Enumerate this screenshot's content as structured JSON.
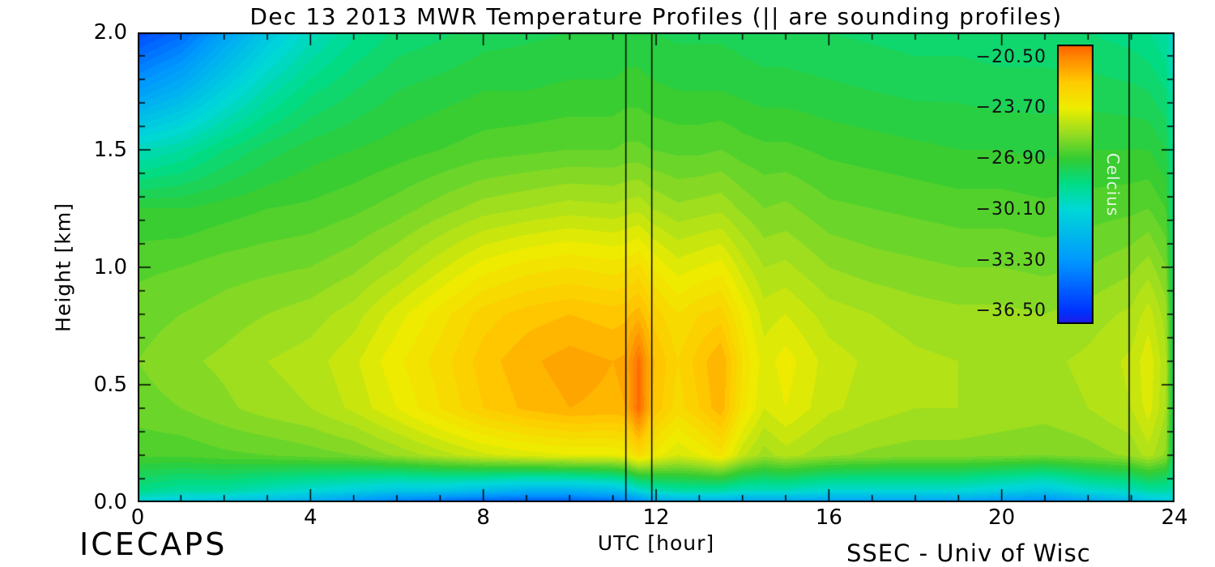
{
  "footer": {
    "left": "ICECAPS",
    "right": "SSEC - Univ of Wisc"
  },
  "chart_data": {
    "type": "heatmap",
    "title": "Dec 13 2013 MWR Temperature Profiles (|| are sounding profiles)",
    "xlabel": "UTC [hour]",
    "ylabel": "Height [km]",
    "xlim": [
      0,
      24
    ],
    "ylim": [
      0,
      2
    ],
    "xticks_major": [
      0,
      4,
      8,
      12,
      16,
      20,
      24
    ],
    "xticks_minor_step": 1,
    "yticks_major": [
      0.0,
      0.5,
      1.0,
      1.5,
      2.0
    ],
    "ytick_labels": [
      "0.0",
      "0.5",
      "1.0",
      "1.5",
      "2.0"
    ],
    "yticks_minor_step": 0.1,
    "sounding_lines_x": [
      11.3,
      11.9,
      22.95
    ],
    "values_units": "C",
    "contour_step": 0.4,
    "colorbar": {
      "label": "Celcius",
      "domain": [
        -37.3,
        -19.7
      ],
      "ticks": [
        -20.5,
        -23.7,
        -26.9,
        -30.1,
        -33.3,
        -36.5
      ],
      "tick_labels": [
        "−20.50",
        "−23.70",
        "−26.90",
        "−30.10",
        "−33.30",
        "−36.50"
      ]
    },
    "color_stops": [
      [
        -38.1,
        "#4400cc"
      ],
      [
        -36.5,
        "#0033ff"
      ],
      [
        -33.3,
        "#0099ff"
      ],
      [
        -30.1,
        "#00d8d8"
      ],
      [
        -28.5,
        "#00dd88"
      ],
      [
        -26.9,
        "#33cc33"
      ],
      [
        -25.3,
        "#99dd22"
      ],
      [
        -23.7,
        "#eeee00"
      ],
      [
        -22.1,
        "#ffcc00"
      ],
      [
        -20.5,
        "#ff8800"
      ],
      [
        -18.9,
        "#ff3300"
      ]
    ],
    "x": [
      0,
      1,
      2,
      3,
      4,
      5,
      6,
      7,
      8,
      9,
      10,
      11,
      11.3,
      11.6,
      11.9,
      12.5,
      13,
      13.5,
      14,
      14.5,
      15,
      16,
      17,
      18,
      19,
      20,
      21,
      22,
      23,
      23.4,
      23.8,
      24
    ],
    "y": [
      0,
      0.05,
      0.2,
      0.4,
      0.6,
      0.8,
      1.0,
      1.25,
      1.5,
      1.75,
      2.0
    ],
    "grid": [
      [
        -30.5,
        -28.5,
        -26.5,
        -26.0,
        -25.8,
        -26.0,
        -26.3,
        -27.0,
        -29.5,
        -33.0,
        -35.8
      ],
      [
        -31.0,
        -29.0,
        -26.5,
        -25.8,
        -25.5,
        -25.8,
        -26.2,
        -27.0,
        -29.0,
        -32.0,
        -34.8
      ],
      [
        -31.5,
        -29.0,
        -26.3,
        -25.5,
        -25.3,
        -25.6,
        -26.0,
        -26.8,
        -28.2,
        -30.5,
        -32.8
      ],
      [
        -32.0,
        -29.5,
        -26.2,
        -25.2,
        -25.0,
        -25.4,
        -25.9,
        -26.6,
        -27.6,
        -29.2,
        -31.0
      ],
      [
        -32.5,
        -30.0,
        -26.0,
        -25.0,
        -24.8,
        -25.2,
        -25.8,
        -26.5,
        -27.2,
        -28.3,
        -29.6
      ],
      [
        -33.5,
        -30.5,
        -25.8,
        -24.5,
        -24.3,
        -24.8,
        -25.5,
        -26.3,
        -27.0,
        -27.8,
        -28.7
      ],
      [
        -34.5,
        -31.0,
        -25.3,
        -23.8,
        -23.5,
        -24.0,
        -25.0,
        -26.0,
        -26.8,
        -27.4,
        -28.1
      ],
      [
        -35.0,
        -31.0,
        -24.8,
        -23.0,
        -22.8,
        -23.2,
        -24.3,
        -25.6,
        -26.6,
        -27.2,
        -27.9
      ],
      [
        -35.5,
        -31.5,
        -24.3,
        -22.2,
        -22.0,
        -22.4,
        -23.6,
        -25.2,
        -26.4,
        -27.0,
        -27.6
      ],
      [
        -35.5,
        -32.0,
        -24.0,
        -21.7,
        -21.5,
        -22.0,
        -23.2,
        -25.0,
        -26.3,
        -27.0,
        -27.5
      ],
      [
        -35.5,
        -32.0,
        -23.8,
        -21.4,
        -21.2,
        -21.8,
        -23.0,
        -24.8,
        -26.2,
        -26.9,
        -27.4
      ],
      [
        -35.0,
        -31.5,
        -23.8,
        -21.5,
        -21.4,
        -22.0,
        -23.2,
        -24.9,
        -26.2,
        -26.9,
        -27.4
      ],
      [
        -34.5,
        -31.0,
        -23.6,
        -21.4,
        -21.3,
        -21.9,
        -23.1,
        -24.8,
        -26.1,
        -26.8,
        -27.3
      ],
      [
        -34.0,
        -30.0,
        -22.8,
        -19.9,
        -20.0,
        -21.6,
        -22.9,
        -24.7,
        -26.1,
        -26.8,
        -27.3
      ],
      [
        -33.0,
        -29.5,
        -23.5,
        -21.8,
        -21.7,
        -22.3,
        -23.4,
        -25.0,
        -26.2,
        -26.9,
        -27.4
      ],
      [
        -32.5,
        -29.0,
        -24.2,
        -22.8,
        -22.6,
        -23.0,
        -24.0,
        -25.3,
        -26.3,
        -27.0,
        -27.5
      ],
      [
        -32.5,
        -29.0,
        -23.8,
        -22.2,
        -22.0,
        -22.6,
        -23.8,
        -25.2,
        -26.3,
        -27.0,
        -27.5
      ],
      [
        -32.5,
        -29.0,
        -23.2,
        -21.5,
        -21.4,
        -22.4,
        -23.6,
        -25.1,
        -26.2,
        -27.0,
        -27.5
      ],
      [
        -33.0,
        -29.5,
        -24.5,
        -23.2,
        -23.0,
        -23.5,
        -24.4,
        -25.5,
        -26.4,
        -27.1,
        -27.6
      ],
      [
        -33.0,
        -29.5,
        -25.2,
        -24.2,
        -24.0,
        -24.4,
        -25.0,
        -25.8,
        -26.5,
        -27.2,
        -27.7
      ],
      [
        -33.0,
        -29.5,
        -24.8,
        -23.8,
        -23.6,
        -24.2,
        -24.9,
        -25.7,
        -26.5,
        -27.2,
        -27.7
      ],
      [
        -33.0,
        -30.0,
        -25.3,
        -24.5,
        -24.4,
        -24.8,
        -25.4,
        -26.1,
        -26.7,
        -27.3,
        -27.8
      ],
      [
        -33.0,
        -30.0,
        -25.5,
        -24.8,
        -24.7,
        -25.0,
        -25.6,
        -26.2,
        -26.8,
        -27.4,
        -27.9
      ],
      [
        -33.0,
        -30.0,
        -25.6,
        -25.0,
        -24.9,
        -25.2,
        -25.7,
        -26.3,
        -26.9,
        -27.5,
        -28.0
      ],
      [
        -33.0,
        -30.0,
        -25.6,
        -25.0,
        -25.0,
        -25.3,
        -25.8,
        -26.4,
        -27.0,
        -27.5,
        -28.0
      ],
      [
        -33.5,
        -30.5,
        -25.7,
        -25.1,
        -25.0,
        -25.3,
        -25.8,
        -26.4,
        -27.0,
        -27.6,
        -28.1
      ],
      [
        -34.0,
        -31.0,
        -25.8,
        -25.2,
        -25.1,
        -25.4,
        -25.9,
        -26.5,
        -27.1,
        -27.6,
        -28.1
      ],
      [
        -33.0,
        -30.0,
        -25.6,
        -25.0,
        -24.9,
        -25.2,
        -25.8,
        -26.4,
        -27.0,
        -27.6,
        -28.2
      ],
      [
        -32.0,
        -29.5,
        -25.3,
        -24.6,
        -24.5,
        -24.9,
        -25.5,
        -26.3,
        -27.0,
        -27.7,
        -28.4
      ],
      [
        -31.5,
        -29.0,
        -24.8,
        -24.0,
        -23.9,
        -24.4,
        -25.2,
        -26.2,
        -27.0,
        -27.8,
        -28.6
      ],
      [
        -31.0,
        -29.0,
        -25.5,
        -25.0,
        -24.9,
        -25.2,
        -25.8,
        -26.6,
        -27.4,
        -28.2,
        -29.0
      ],
      [
        -30.5,
        -29.3,
        -28.3,
        -28.2,
        -28.2,
        -28.3,
        -28.5,
        -28.8,
        -29.1,
        -29.6,
        -30.2
      ]
    ]
  }
}
